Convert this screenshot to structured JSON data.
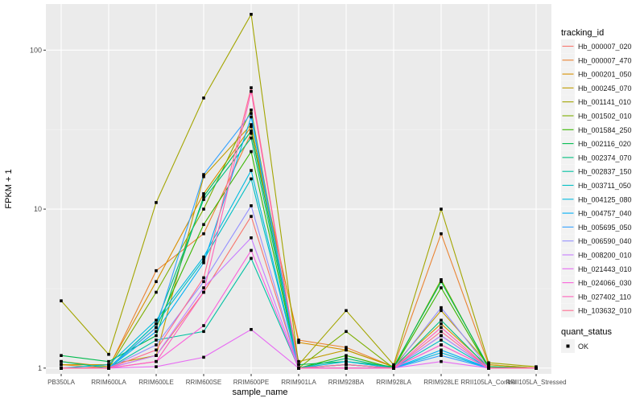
{
  "chart_data": {
    "type": "line",
    "xlabel": "sample_name",
    "ylabel": "FPKM + 1",
    "yscale": "log10",
    "ylim": [
      0.92,
      195
    ],
    "yticks": [
      1,
      10,
      100
    ],
    "ytick_labels": [
      "1",
      "10",
      "100"
    ],
    "grid": true,
    "legend_position": "right",
    "categories": [
      "PB350LA",
      "RRIM600LA",
      "RRIM600LE",
      "RRIM600SE",
      "RRIM600PE",
      "RRIM901LA",
      "RRIM928BA",
      "RRIM928LA",
      "RRIM928LE",
      "RRII105LA_Control",
      "RRII105LA_Stressed"
    ],
    "series": [
      {
        "name": "Hb_000007_020",
        "color": "#F8766D",
        "values": [
          1.0,
          1.0,
          1.2,
          3.0,
          9.0,
          1.0,
          1.05,
          1.0,
          1.4,
          1.0,
          1.0
        ]
      },
      {
        "name": "Hb_000007_470",
        "color": "#EA8331",
        "values": [
          1.05,
          1.0,
          4.1,
          7.0,
          30.0,
          1.5,
          1.35,
          1.02,
          7.0,
          1.05,
          1.0
        ]
      },
      {
        "name": "Hb_000201_050",
        "color": "#D89000",
        "values": [
          1.1,
          1.02,
          3.5,
          12.5,
          33.0,
          1.45,
          1.3,
          1.02,
          1.9,
          1.02,
          1.0
        ]
      },
      {
        "name": "Hb_000245_070",
        "color": "#C09B00",
        "values": [
          1.05,
          1.05,
          1.2,
          16.0,
          34.0,
          1.1,
          1.3,
          1.02,
          2.3,
          1.05,
          1.0
        ]
      },
      {
        "name": "Hb_001141_010",
        "color": "#A3A500",
        "values": [
          2.65,
          1.22,
          11.0,
          50.0,
          168.0,
          1.05,
          2.3,
          1.05,
          10.0,
          1.08,
          1.02
        ]
      },
      {
        "name": "Hb_001502_010",
        "color": "#7CAE00",
        "values": [
          1.0,
          1.0,
          3.0,
          10.0,
          42.0,
          1.0,
          1.7,
          1.0,
          3.6,
          1.0,
          1.0
        ]
      },
      {
        "name": "Hb_001584_250",
        "color": "#39B600",
        "values": [
          1.0,
          1.0,
          1.8,
          8.0,
          23.0,
          1.0,
          1.2,
          1.0,
          3.2,
          1.0,
          1.0
        ]
      },
      {
        "name": "Hb_002116_020",
        "color": "#00BB4E",
        "values": [
          1.2,
          1.1,
          1.6,
          12.0,
          31.0,
          1.05,
          1.1,
          1.02,
          3.5,
          1.02,
          1.0
        ]
      },
      {
        "name": "Hb_002374_070",
        "color": "#00BF7D",
        "values": [
          1.1,
          1.0,
          1.9,
          11.5,
          28.0,
          1.0,
          1.15,
          1.0,
          2.0,
          1.0,
          1.0
        ]
      },
      {
        "name": "Hb_002837_150",
        "color": "#00C1A3",
        "values": [
          1.0,
          1.0,
          1.5,
          1.7,
          4.9,
          1.0,
          1.0,
          1.0,
          1.6,
          1.0,
          1.0
        ]
      },
      {
        "name": "Hb_003711_050",
        "color": "#00BFC4",
        "values": [
          1.0,
          1.0,
          1.9,
          4.8,
          15.5,
          1.0,
          1.05,
          1.0,
          1.5,
          1.0,
          1.0
        ]
      },
      {
        "name": "Hb_004125_080",
        "color": "#00BAE0",
        "values": [
          1.0,
          1.05,
          2.0,
          5.0,
          17.5,
          1.0,
          1.1,
          1.0,
          1.25,
          1.0,
          1.0
        ]
      },
      {
        "name": "Hb_004757_040",
        "color": "#00B0F6",
        "values": [
          1.0,
          1.0,
          1.7,
          4.6,
          38.0,
          1.0,
          1.05,
          1.0,
          1.3,
          1.0,
          1.0
        ]
      },
      {
        "name": "Hb_005695_050",
        "color": "#35A2FF",
        "values": [
          1.0,
          1.0,
          1.8,
          16.5,
          40.0,
          1.0,
          1.0,
          1.0,
          1.2,
          1.0,
          1.0
        ]
      },
      {
        "name": "Hb_006590_040",
        "color": "#9590FF",
        "values": [
          1.0,
          1.0,
          1.4,
          3.5,
          10.5,
          1.0,
          1.0,
          1.0,
          2.4,
          1.0,
          1.0
        ]
      },
      {
        "name": "Hb_008200_010",
        "color": "#C77CFF",
        "values": [
          1.0,
          1.0,
          1.2,
          3.2,
          6.6,
          1.0,
          1.0,
          1.0,
          1.6,
          1.0,
          1.0
        ]
      },
      {
        "name": "Hb_021443_010",
        "color": "#E76BF3",
        "values": [
          1.0,
          1.0,
          1.02,
          1.17,
          1.75,
          1.0,
          1.0,
          1.0,
          1.1,
          1.0,
          1.0
        ]
      },
      {
        "name": "Hb_024066_030",
        "color": "#FA62DB",
        "values": [
          1.0,
          1.0,
          1.1,
          1.85,
          5.5,
          1.0,
          1.0,
          1.0,
          1.4,
          1.0,
          1.0
        ]
      },
      {
        "name": "Hb_027402_110",
        "color": "#FF62BC",
        "values": [
          1.0,
          1.0,
          1.1,
          3.0,
          55.0,
          1.0,
          1.0,
          1.0,
          1.8,
          1.0,
          1.0
        ]
      },
      {
        "name": "Hb_103632_010",
        "color": "#FF6C91",
        "values": [
          1.0,
          1.0,
          1.3,
          3.7,
          58.0,
          1.0,
          1.05,
          1.0,
          1.7,
          1.0,
          1.0
        ]
      }
    ],
    "legends": [
      {
        "title": "tracking_id"
      },
      {
        "title": "quant_status",
        "entries": [
          "OK"
        ]
      }
    ]
  }
}
